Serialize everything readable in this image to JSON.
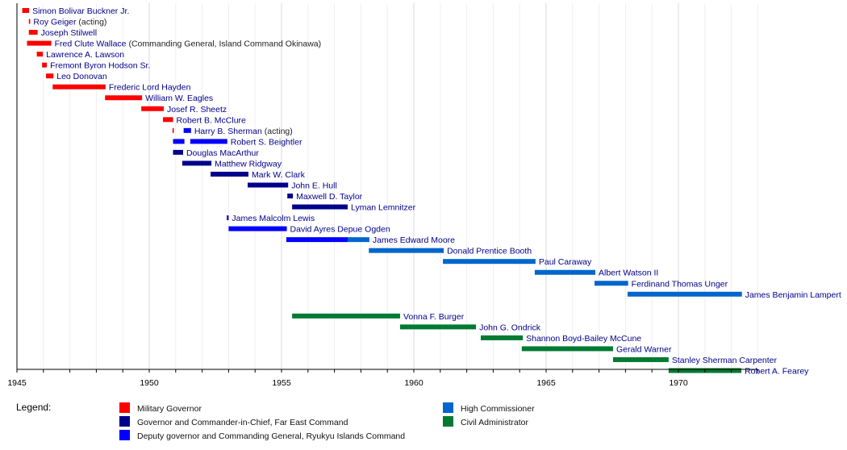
{
  "chart_data": {
    "type": "timeline",
    "title": "",
    "xlabel": "",
    "ylabel": "",
    "xlim": [
      1945,
      1973
    ],
    "x_ticks_major": [
      1945,
      1950,
      1955,
      1960,
      1965,
      1970
    ],
    "x_ticks_minor_step": 1,
    "grid": true,
    "categories": {
      "MG": {
        "label": "Military Governor",
        "color": "#ff0000"
      },
      "FEC": {
        "label": "Governor and Commander-in-Chief, Far East Command",
        "color": "#00008b"
      },
      "RIC": {
        "label": "Deputy governor and Commanding General, Ryukyu Islands Command",
        "color": "#0000ff"
      },
      "HC": {
        "label": "High Commissioner",
        "color": "#0066cc"
      },
      "CA": {
        "label": "Civil Administrator",
        "color": "#007a33"
      }
    },
    "rows": [
      {
        "name": "Simon Bolivar Buckner Jr.",
        "note": "",
        "label_after": 1945.46,
        "bars": [
          {
            "cat": "MG",
            "start": 1945.2,
            "end": 1945.46
          }
        ]
      },
      {
        "name": "Roy Geiger",
        "note": "(acting)",
        "label_after": 1945.5,
        "bars": [
          {
            "cat": "MG",
            "start": 1945.45,
            "end": 1945.5
          }
        ]
      },
      {
        "name": "Joseph Stilwell",
        "note": "",
        "label_after": 1945.78,
        "bars": [
          {
            "cat": "MG",
            "start": 1945.45,
            "end": 1945.78
          }
        ]
      },
      {
        "name": "Fred Clute Wallace",
        "note": "(Commanding General, Island Command Okinawa)",
        "label_after": 1946.3,
        "bars": [
          {
            "cat": "MG",
            "start": 1945.38,
            "end": 1946.3
          }
        ]
      },
      {
        "name": "Lawrence A. Lawson",
        "note": "",
        "label_after": 1945.98,
        "bars": [
          {
            "cat": "MG",
            "start": 1945.75,
            "end": 1945.98
          }
        ]
      },
      {
        "name": "Fremont Byron Hodson Sr.",
        "note": "",
        "label_after": 1946.13,
        "bars": [
          {
            "cat": "MG",
            "start": 1945.95,
            "end": 1946.13
          }
        ]
      },
      {
        "name": "Leo Donovan",
        "note": "",
        "label_after": 1946.38,
        "bars": [
          {
            "cat": "MG",
            "start": 1946.1,
            "end": 1946.38
          }
        ]
      },
      {
        "name": "Frederic Lord Hayden",
        "note": "",
        "label_after": 1948.35,
        "bars": [
          {
            "cat": "MG",
            "start": 1946.35,
            "end": 1948.35
          }
        ]
      },
      {
        "name": "William W. Eagles",
        "note": "",
        "label_after": 1949.73,
        "bars": [
          {
            "cat": "MG",
            "start": 1948.33,
            "end": 1949.73
          }
        ]
      },
      {
        "name": "Josef R. Sheetz",
        "note": "",
        "label_after": 1950.55,
        "bars": [
          {
            "cat": "MG",
            "start": 1949.7,
            "end": 1950.55
          }
        ]
      },
      {
        "name": "Robert B. McClure",
        "note": "",
        "label_after": 1950.9,
        "bars": [
          {
            "cat": "MG",
            "start": 1950.52,
            "end": 1950.9
          }
        ]
      },
      {
        "name": "Harry B. Sherman",
        "note": "(acting)",
        "label_after": 1951.58,
        "bars": [
          {
            "cat": "MG",
            "start": 1950.88,
            "end": 1950.93
          },
          {
            "cat": "RIC",
            "start": 1951.3,
            "end": 1951.58
          }
        ]
      },
      {
        "name": "Robert S. Beightler",
        "note": "",
        "label_after": 1952.95,
        "bars": [
          {
            "cat": "RIC",
            "start": 1950.9,
            "end": 1951.33
          },
          {
            "cat": "RIC",
            "start": 1951.55,
            "end": 1952.95
          }
        ]
      },
      {
        "name": "Douglas MacArthur",
        "note": "",
        "label_after": 1951.28,
        "bars": [
          {
            "cat": "FEC",
            "start": 1950.9,
            "end": 1951.28
          }
        ]
      },
      {
        "name": "Matthew Ridgway",
        "note": "",
        "label_after": 1952.35,
        "bars": [
          {
            "cat": "FEC",
            "start": 1951.25,
            "end": 1952.35
          }
        ]
      },
      {
        "name": "Mark W. Clark",
        "note": "",
        "label_after": 1953.75,
        "bars": [
          {
            "cat": "FEC",
            "start": 1952.32,
            "end": 1953.75
          }
        ]
      },
      {
        "name": "John E. Hull",
        "note": "",
        "label_after": 1955.25,
        "bars": [
          {
            "cat": "FEC",
            "start": 1953.72,
            "end": 1955.25
          }
        ]
      },
      {
        "name": "Maxwell D. Taylor",
        "note": "",
        "label_after": 1955.43,
        "bars": [
          {
            "cat": "FEC",
            "start": 1955.22,
            "end": 1955.43
          }
        ]
      },
      {
        "name": "Lyman Lemnitzer",
        "note": "",
        "label_after": 1957.5,
        "bars": [
          {
            "cat": "FEC",
            "start": 1955.4,
            "end": 1957.5
          }
        ]
      },
      {
        "name": "James Malcolm Lewis",
        "note": "",
        "label_after": 1953.0,
        "bars": [
          {
            "cat": "RIC",
            "start": 1952.93,
            "end": 1953.0
          }
        ]
      },
      {
        "name": "David Ayres Depue Ogden",
        "note": "",
        "label_after": 1955.2,
        "bars": [
          {
            "cat": "RIC",
            "start": 1953.0,
            "end": 1955.2
          }
        ]
      },
      {
        "name": "James Edward Moore",
        "note": "",
        "label_after": 1958.32,
        "bars": [
          {
            "cat": "RIC",
            "start": 1955.18,
            "end": 1957.5
          },
          {
            "cat": "HC",
            "start": 1957.5,
            "end": 1958.32
          }
        ]
      },
      {
        "name": "Donald Prentice Booth",
        "note": "",
        "label_after": 1961.13,
        "bars": [
          {
            "cat": "HC",
            "start": 1958.3,
            "end": 1961.13
          }
        ]
      },
      {
        "name": "Paul Caraway",
        "note": "",
        "label_after": 1964.6,
        "bars": [
          {
            "cat": "HC",
            "start": 1961.1,
            "end": 1964.6
          }
        ]
      },
      {
        "name": "Albert Watson II",
        "note": "",
        "label_after": 1966.86,
        "bars": [
          {
            "cat": "HC",
            "start": 1964.57,
            "end": 1966.86
          }
        ]
      },
      {
        "name": "Ferdinand Thomas Unger",
        "note": "",
        "label_after": 1968.1,
        "bars": [
          {
            "cat": "HC",
            "start": 1966.83,
            "end": 1968.1
          }
        ]
      },
      {
        "name": "James Benjamin Lampert",
        "note": "",
        "label_after": 1972.4,
        "bars": [
          {
            "cat": "HC",
            "start": 1968.08,
            "end": 1972.4
          }
        ]
      },
      {
        "name": "",
        "note": "",
        "label_after": null,
        "bars": []
      },
      {
        "name": "Vonna F. Burger",
        "note": "",
        "label_after": 1959.48,
        "bars": [
          {
            "cat": "CA",
            "start": 1955.4,
            "end": 1959.48
          }
        ]
      },
      {
        "name": "John G. Ondrick",
        "note": "",
        "label_after": 1962.35,
        "bars": [
          {
            "cat": "CA",
            "start": 1959.48,
            "end": 1962.35
          }
        ]
      },
      {
        "name": "Shannon Boyd-Bailey McCune",
        "note": "",
        "label_after": 1964.12,
        "bars": [
          {
            "cat": "CA",
            "start": 1962.53,
            "end": 1964.12
          }
        ]
      },
      {
        "name": "Gerald Warner",
        "note": "",
        "label_after": 1967.53,
        "bars": [
          {
            "cat": "CA",
            "start": 1964.08,
            "end": 1967.53
          }
        ]
      },
      {
        "name": "Stanley Sherman Carpenter",
        "note": "",
        "label_after": 1969.63,
        "bars": [
          {
            "cat": "CA",
            "start": 1967.53,
            "end": 1969.63
          }
        ]
      },
      {
        "name": "Robert A. Fearey",
        "note": "",
        "label_after": 1972.38,
        "bars": [
          {
            "cat": "CA",
            "start": 1969.63,
            "end": 1972.38
          }
        ]
      }
    ],
    "legend": {
      "title": "Legend:",
      "placement": "bottom",
      "columns": [
        [
          "MG",
          "FEC",
          "RIC"
        ],
        [
          "HC",
          "CA"
        ]
      ]
    }
  }
}
